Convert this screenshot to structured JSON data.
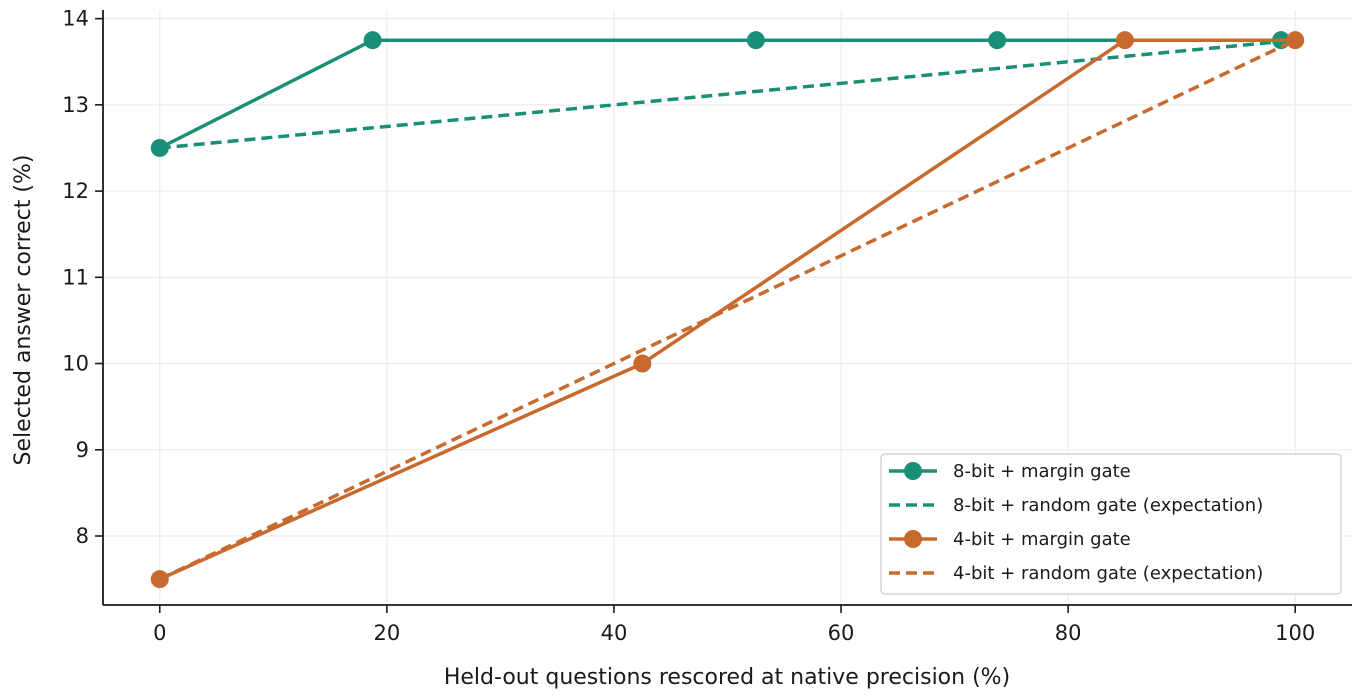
{
  "chart_data": {
    "type": "line",
    "xlabel": "Held-out questions rescored at native precision (%)",
    "ylabel": "Selected answer correct (%)",
    "xlim": [
      -5,
      105
    ],
    "ylim": [
      7.2,
      14.1
    ],
    "xticks": [
      "0",
      "20",
      "40",
      "60",
      "80",
      "100"
    ],
    "yticks": [
      "8",
      "9",
      "10",
      "11",
      "12",
      "13",
      "14"
    ],
    "grid": true,
    "legend_position": "lower-right",
    "series": [
      {
        "name": "8-bit + margin gate",
        "color": "#1a8f78",
        "style": "solid",
        "markers": true,
        "points": [
          [
            0,
            12.5
          ],
          [
            18.75,
            13.75
          ],
          [
            52.5,
            13.75
          ],
          [
            73.75,
            13.75
          ],
          [
            98.75,
            13.75
          ]
        ]
      },
      {
        "name": "8-bit + random gate (expectation)",
        "color": "#1a8f78",
        "style": "dashed",
        "markers": false,
        "points": [
          [
            0,
            12.5
          ],
          [
            100,
            13.75
          ]
        ]
      },
      {
        "name": "4-bit + margin gate",
        "color": "#c8692e",
        "style": "solid",
        "markers": true,
        "points": [
          [
            0,
            7.5
          ],
          [
            42.5,
            10.0
          ],
          [
            85.0,
            13.75
          ],
          [
            100,
            13.75
          ]
        ]
      },
      {
        "name": "4-bit + random gate (expectation)",
        "color": "#c8692e",
        "style": "dashed",
        "markers": false,
        "points": [
          [
            0,
            7.5
          ],
          [
            100,
            13.75
          ]
        ]
      }
    ]
  }
}
